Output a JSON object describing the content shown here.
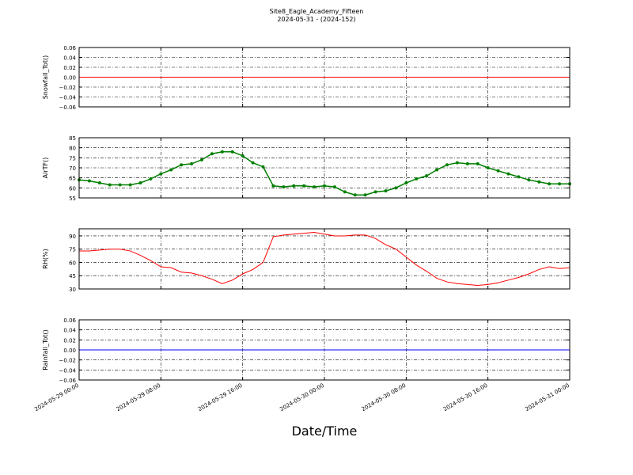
{
  "title": "Site8_Eagle_Academy_Fifteen",
  "subtitle": "2024-05-31 - (2024-152)",
  "xlabel": "Date/Time",
  "chart_data": [
    {
      "type": "line",
      "ylabel": "Snowfall_Tot()",
      "x": [
        "2024-05-29 00:00",
        "2024-05-31 00:00"
      ],
      "series": [
        {
          "color": "#ff0000",
          "values": [
            0,
            0
          ]
        }
      ],
      "ylim": [
        -0.06,
        0.06
      ],
      "yticks": [
        {
          "value": -0.06,
          "label": "−0.06"
        },
        {
          "value": -0.04,
          "label": "−0.04"
        },
        {
          "value": -0.02,
          "label": "−0.02"
        },
        {
          "value": 0,
          "label": "0.00"
        },
        0.02,
        0.04,
        0.06
      ],
      "grid": true
    },
    {
      "type": "line",
      "ylabel": "AirTF()",
      "markers": true,
      "x": [
        "2024-05-29 00:00",
        "2024-05-29 01:00",
        "2024-05-29 02:00",
        "2024-05-29 03:00",
        "2024-05-29 04:00",
        "2024-05-29 05:00",
        "2024-05-29 06:00",
        "2024-05-29 07:00",
        "2024-05-29 08:00",
        "2024-05-29 09:00",
        "2024-05-29 10:00",
        "2024-05-29 11:00",
        "2024-05-29 12:00",
        "2024-05-29 13:00",
        "2024-05-29 14:00",
        "2024-05-29 15:00",
        "2024-05-29 16:00",
        "2024-05-29 17:00",
        "2024-05-29 18:00",
        "2024-05-29 19:00",
        "2024-05-29 20:00",
        "2024-05-29 21:00",
        "2024-05-29 22:00",
        "2024-05-29 23:00",
        "2024-05-30 00:00",
        "2024-05-30 01:00",
        "2024-05-30 02:00",
        "2024-05-30 03:00",
        "2024-05-30 04:00",
        "2024-05-30 05:00",
        "2024-05-30 06:00",
        "2024-05-30 07:00",
        "2024-05-30 08:00",
        "2024-05-30 09:00",
        "2024-05-30 10:00",
        "2024-05-30 11:00",
        "2024-05-30 12:00",
        "2024-05-30 13:00",
        "2024-05-30 14:00",
        "2024-05-30 15:00",
        "2024-05-30 16:00",
        "2024-05-30 17:00",
        "2024-05-30 18:00",
        "2024-05-30 19:00",
        "2024-05-30 20:00",
        "2024-05-30 21:00",
        "2024-05-30 22:00",
        "2024-05-30 23:00",
        "2024-05-31 00:00"
      ],
      "series": [
        {
          "color": "#007f00",
          "values": [
            64,
            63.5,
            62.5,
            61.5,
            61.5,
            61.5,
            62.5,
            64.5,
            67,
            69,
            71.5,
            72,
            74,
            77,
            78,
            78,
            76,
            72.5,
            70.5,
            61,
            60.5,
            61,
            61,
            60.5,
            61,
            60.5,
            58,
            56.5,
            56.5,
            58,
            58.5,
            60,
            62.5,
            64.5,
            66,
            69,
            71.5,
            72.5,
            72,
            72,
            70,
            68.5,
            67,
            65.5,
            64,
            63,
            62,
            62,
            62
          ]
        }
      ],
      "ylim": [
        55,
        85
      ],
      "yticks": [
        55,
        60,
        65,
        70,
        75,
        80,
        85
      ],
      "grid": true
    },
    {
      "type": "line",
      "ylabel": "RH(%)",
      "x": [
        "2024-05-29 00:00",
        "2024-05-29 01:00",
        "2024-05-29 02:00",
        "2024-05-29 03:00",
        "2024-05-29 04:00",
        "2024-05-29 05:00",
        "2024-05-29 06:00",
        "2024-05-29 07:00",
        "2024-05-29 08:00",
        "2024-05-29 09:00",
        "2024-05-29 10:00",
        "2024-05-29 11:00",
        "2024-05-29 12:00",
        "2024-05-29 13:00",
        "2024-05-29 14:00",
        "2024-05-29 15:00",
        "2024-05-29 16:00",
        "2024-05-29 17:00",
        "2024-05-29 18:00",
        "2024-05-29 19:00",
        "2024-05-29 20:00",
        "2024-05-29 21:00",
        "2024-05-29 22:00",
        "2024-05-29 23:00",
        "2024-05-30 00:00",
        "2024-05-30 01:00",
        "2024-05-30 02:00",
        "2024-05-30 03:00",
        "2024-05-30 04:00",
        "2024-05-30 05:00",
        "2024-05-30 06:00",
        "2024-05-30 07:00",
        "2024-05-30 08:00",
        "2024-05-30 09:00",
        "2024-05-30 10:00",
        "2024-05-30 11:00",
        "2024-05-30 12:00",
        "2024-05-30 13:00",
        "2024-05-30 14:00",
        "2024-05-30 15:00",
        "2024-05-30 16:00",
        "2024-05-30 17:00",
        "2024-05-30 18:00",
        "2024-05-30 19:00",
        "2024-05-30 20:00",
        "2024-05-30 21:00",
        "2024-05-30 22:00",
        "2024-05-30 23:00",
        "2024-05-31 00:00"
      ],
      "series": [
        {
          "color": "#ff0000",
          "values": [
            73,
            73,
            74,
            75,
            75,
            73,
            68,
            62,
            55,
            54,
            49,
            48,
            45,
            41,
            36,
            40,
            47,
            52,
            60,
            89,
            91,
            92,
            93,
            94,
            92,
            90,
            90,
            91,
            91,
            87,
            80,
            75,
            66,
            57,
            50,
            42,
            38,
            36,
            35,
            34,
            35,
            37,
            40,
            43,
            47,
            52,
            55,
            53,
            54
          ]
        }
      ],
      "ylim": [
        30,
        98
      ],
      "yticks": [
        30,
        45,
        60,
        75,
        90
      ],
      "grid": true
    },
    {
      "type": "line",
      "ylabel": "Rainfall_Tot()",
      "x": [
        "2024-05-29 00:00",
        "2024-05-31 00:00"
      ],
      "series": [
        {
          "color": "#0000ff",
          "values": [
            0,
            0
          ]
        }
      ],
      "ylim": [
        -0.06,
        0.06
      ],
      "yticks": [
        {
          "value": -0.06,
          "label": "−0.06"
        },
        {
          "value": -0.04,
          "label": "−0.04"
        },
        {
          "value": -0.02,
          "label": "−0.02"
        },
        {
          "value": 0,
          "label": "0.00"
        },
        0.02,
        0.04,
        0.06
      ],
      "grid": true,
      "xlim": [
        "2024-05-29 00:00",
        "2024-05-31 00:00"
      ],
      "xticks": [
        "2024-05-29 00:00",
        "2024-05-29 08:00",
        "2024-05-29 16:00",
        "2024-05-30 00:00",
        "2024-05-30 08:00",
        "2024-05-30 16:00",
        "2024-05-31 00:00"
      ]
    }
  ]
}
